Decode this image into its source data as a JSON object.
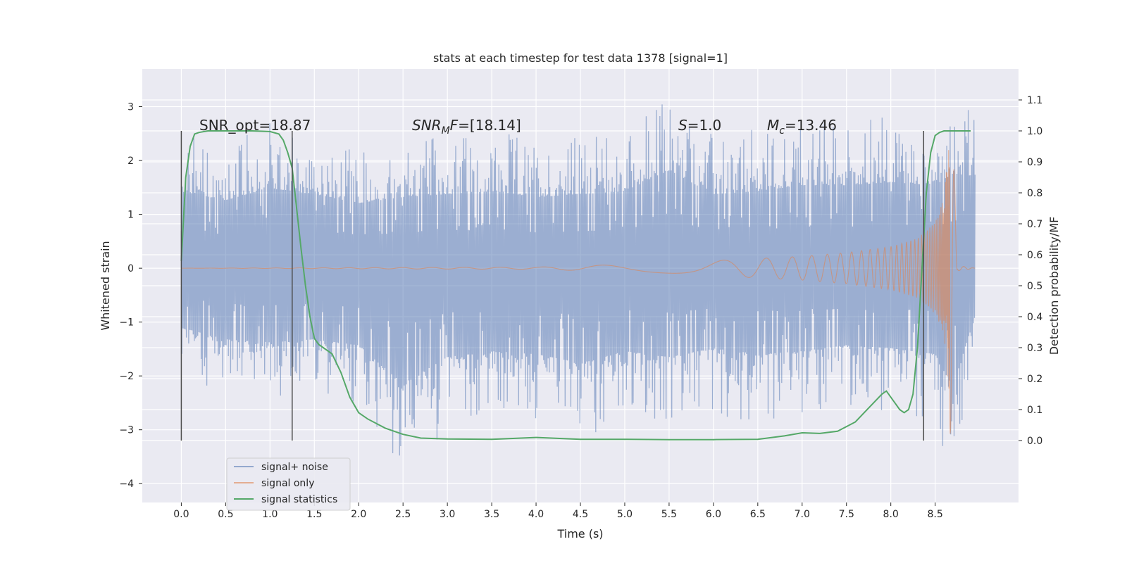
{
  "chart_data": {
    "type": "line",
    "title": "stats at each timestep for test data 1378 [signal=1]",
    "xlabel": "Time (s)",
    "ylabel": "Whitened strain",
    "y2label": "Detection probability/MF",
    "xlim": [
      -0.44,
      9.44
    ],
    "ylim": [
      -4.35,
      3.7
    ],
    "y2lim": [
      -0.2,
      1.2
    ],
    "x_ticks": [
      0.0,
      0.5,
      1.0,
      1.5,
      2.0,
      2.5,
      3.0,
      3.5,
      4.0,
      4.5,
      5.0,
      5.5,
      6.0,
      6.5,
      7.0,
      7.5,
      8.0,
      8.5
    ],
    "x_tick_labels": [
      "0.0",
      "0.5",
      "1.0",
      "1.5",
      "2.0",
      "2.5",
      "3.0",
      "3.5",
      "4.0",
      "4.5",
      "5.0",
      "5.5",
      "6.0",
      "6.5",
      "7.0",
      "7.5",
      "8.0",
      "8.5"
    ],
    "y_ticks": [
      -4,
      -3,
      -2,
      -1,
      0,
      1,
      2,
      3
    ],
    "y_tick_labels": [
      "−4",
      "−3",
      "−2",
      "−1",
      "0",
      "1",
      "2",
      "3"
    ],
    "y2_ticks": [
      0.0,
      0.1,
      0.2,
      0.3,
      0.4,
      0.5,
      0.6,
      0.7,
      0.8,
      0.9,
      1.0,
      1.1
    ],
    "y2_tick_labels": [
      "0.0",
      "0.1",
      "0.2",
      "0.3",
      "0.4",
      "0.5",
      "0.6",
      "0.7",
      "0.8",
      "0.9",
      "1.0",
      "1.1"
    ],
    "grid": true,
    "legend_position": "lower-left",
    "annotations": [
      "SNR_opt=18.87",
      "=[18.14]",
      "=1.0",
      "=13.46"
    ],
    "annotation_italic": [
      "SNR",
      "M",
      "F",
      "S",
      "M",
      "c"
    ],
    "vertical_markers_x": [
      0.0,
      1.25,
      8.37
    ],
    "series": [
      {
        "name": "signal+ noise",
        "color": "#4c72b0",
        "axis": "left",
        "description_envelope": {
          "x": [
            0.0,
            0.5,
            1.0,
            1.5,
            2.0,
            2.5,
            3.0,
            3.5,
            4.0,
            4.5,
            5.0,
            5.5,
            6.0,
            6.5,
            7.0,
            7.5,
            8.0,
            8.5,
            8.7,
            8.95
          ],
          "upper": [
            2.5,
            2.3,
            2.7,
            2.5,
            2.2,
            2.4,
            2.5,
            2.6,
            2.4,
            2.5,
            2.6,
            3.3,
            2.5,
            2.6,
            2.8,
            2.8,
            2.9,
            2.8,
            3.2,
            3.1
          ],
          "lower": [
            -2.0,
            -2.4,
            -2.5,
            -2.4,
            -2.6,
            -3.9,
            -3.0,
            -2.8,
            -2.9,
            -3.2,
            -2.8,
            -3.0,
            -2.7,
            -2.9,
            -2.8,
            -2.6,
            -2.7,
            -2.9,
            -4.0,
            -1.6
          ]
        }
      },
      {
        "name": "signal only",
        "color": "#dd8452",
        "axis": "left",
        "peak_time": 8.67,
        "envelope": {
          "x": [
            0.0,
            4.0,
            5.0,
            6.0,
            7.0,
            7.5,
            8.0,
            8.3,
            8.5,
            8.6,
            8.65,
            8.68,
            8.75,
            8.95
          ],
          "amp": [
            0.0,
            0.02,
            0.07,
            0.14,
            0.22,
            0.29,
            0.4,
            0.55,
            0.85,
            1.3,
            2.3,
            3.6,
            0.05,
            0.0
          ]
        }
      },
      {
        "name": "signal statistics",
        "color": "#55a868",
        "axis": "right",
        "x": [
          0.0,
          0.05,
          0.1,
          0.15,
          0.2,
          0.3,
          0.5,
          0.8,
          1.0,
          1.1,
          1.15,
          1.2,
          1.25,
          1.3,
          1.35,
          1.4,
          1.45,
          1.5,
          1.55,
          1.6,
          1.7,
          1.8,
          1.9,
          2.0,
          2.1,
          2.3,
          2.5,
          2.7,
          3.0,
          3.5,
          4.0,
          4.5,
          5.0,
          5.5,
          6.0,
          6.5,
          6.8,
          7.0,
          7.2,
          7.4,
          7.6,
          7.8,
          7.9,
          7.95,
          8.0,
          8.05,
          8.1,
          8.15,
          8.2,
          8.25,
          8.3,
          8.35,
          8.4,
          8.45,
          8.5,
          8.55,
          8.6,
          8.7,
          8.8,
          8.9
        ],
        "values": [
          0.58,
          0.85,
          0.95,
          0.99,
          0.995,
          1.0,
          1.0,
          1.0,
          0.998,
          0.99,
          0.97,
          0.93,
          0.88,
          0.75,
          0.62,
          0.5,
          0.4,
          0.33,
          0.31,
          0.3,
          0.28,
          0.22,
          0.14,
          0.09,
          0.07,
          0.04,
          0.02,
          0.008,
          0.005,
          0.004,
          0.01,
          0.004,
          0.004,
          0.003,
          0.003,
          0.004,
          0.015,
          0.025,
          0.023,
          0.03,
          0.06,
          0.12,
          0.15,
          0.16,
          0.14,
          0.12,
          0.1,
          0.09,
          0.1,
          0.15,
          0.3,
          0.55,
          0.8,
          0.93,
          0.985,
          0.995,
          1.0,
          1.0,
          1.0,
          1.0
        ]
      }
    ]
  }
}
